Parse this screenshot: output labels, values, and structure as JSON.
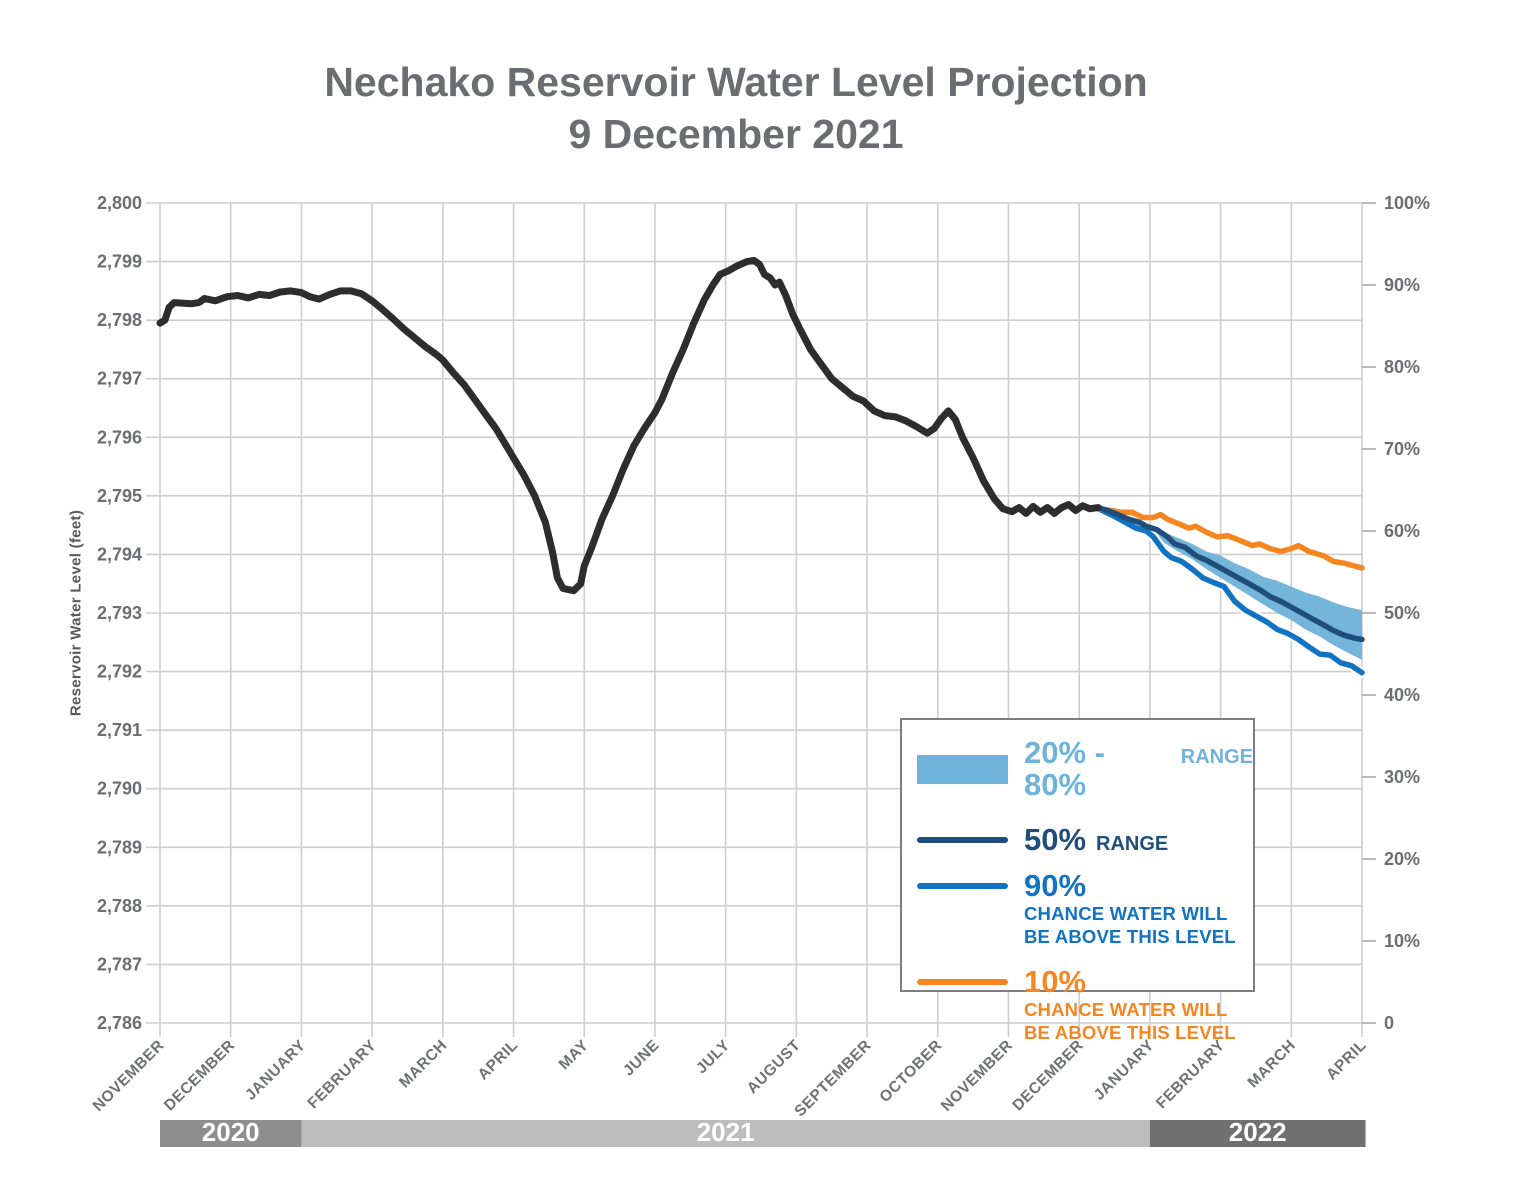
{
  "title": {
    "line1": "Nechako Reservoir Water Level Projection",
    "line2": "9 December 2021"
  },
  "axes": {
    "y_left": {
      "label": "Reservoir Water Level (feet)",
      "min": 2786,
      "max": 2800,
      "ticks": [
        "2,786",
        "2,787",
        "2,788",
        "2,789",
        "2,790",
        "2,791",
        "2,792",
        "2,793",
        "2,794",
        "2,795",
        "2,796",
        "2,797",
        "2,798",
        "2,799",
        "2,800"
      ]
    },
    "y_right": {
      "min": 0,
      "max": 100,
      "ticks": [
        "0",
        "10%",
        "20%",
        "30%",
        "40%",
        "50%",
        "60%",
        "70%",
        "80%",
        "90%",
        "100%"
      ]
    },
    "x": {
      "months": [
        "NOVEMBER",
        "DECEMBER",
        "JANUARY",
        "FEBRUARY",
        "MARCH",
        "APRIL",
        "MAY",
        "JUNE",
        "JULY",
        "AUGUST",
        "SEPTEMBER",
        "OCTOBER",
        "NOVEMBER",
        "DECEMBER",
        "JANUARY",
        "FEBRUARY",
        "MARCH",
        "APRIL"
      ],
      "years": [
        {
          "label": "2020",
          "from": 0,
          "to": 2,
          "color": "#8e8e8e"
        },
        {
          "label": "2021",
          "from": 2,
          "to": 14,
          "color": "#bdbdbd"
        },
        {
          "label": "2022",
          "from": 14,
          "to": 17.05,
          "color": "#707070"
        }
      ]
    }
  },
  "legend": {
    "item1_big": "20% - 80%",
    "item1_small": "RANGE",
    "item2_big": "50%",
    "item2_small": "RANGE",
    "item3_big": "90%",
    "item3_line1": "CHANCE WATER WILL",
    "item3_line2": "BE ABOVE THIS LEVEL",
    "item4_big": "10%",
    "item4_line1": "CHANCE WATER WILL",
    "item4_line2": "BE ABOVE THIS LEVEL"
  },
  "colors": {
    "historical": "#2d2d2d",
    "band": "#74b5d9",
    "band_text": "#6fb3da",
    "navy": "#1f4e7c",
    "blue": "#1173c1",
    "orange": "#f6861f",
    "grid": "#cdced0",
    "tick_text": "#6d6e71",
    "month_text": "#6f7174",
    "title_text": "#6c6d70"
  },
  "chart_data": {
    "type": "line",
    "title": "Nechako Reservoir Water Level Projection 9 December 2021",
    "xlabel_unit": "months since 2020-11-01",
    "ylabel": "Reservoir Water Level (feet)",
    "ylim": [
      2786,
      2800
    ],
    "y2lim_percent": [
      0,
      100
    ],
    "grid": true,
    "legend_position": "inside lower right",
    "series": [
      {
        "name": "historical_water_level",
        "points": [
          [
            0,
            2797.95
          ],
          [
            0.07,
            2798.0
          ],
          [
            0.13,
            2798.22
          ],
          [
            0.2,
            2798.3
          ],
          [
            0.45,
            2798.28
          ],
          [
            0.55,
            2798.3
          ],
          [
            0.63,
            2798.37
          ],
          [
            0.78,
            2798.33
          ],
          [
            0.95,
            2798.4
          ],
          [
            1.1,
            2798.42
          ],
          [
            1.25,
            2798.38
          ],
          [
            1.4,
            2798.44
          ],
          [
            1.55,
            2798.42
          ],
          [
            1.7,
            2798.48
          ],
          [
            1.85,
            2798.5
          ],
          [
            2.0,
            2798.47
          ],
          [
            2.12,
            2798.4
          ],
          [
            2.25,
            2798.36
          ],
          [
            2.4,
            2798.44
          ],
          [
            2.55,
            2798.5
          ],
          [
            2.7,
            2798.5
          ],
          [
            2.85,
            2798.45
          ],
          [
            3.0,
            2798.33
          ],
          [
            3.15,
            2798.18
          ],
          [
            3.3,
            2798.02
          ],
          [
            3.45,
            2797.85
          ],
          [
            3.6,
            2797.7
          ],
          [
            3.75,
            2797.55
          ],
          [
            3.9,
            2797.42
          ],
          [
            4.0,
            2797.32
          ],
          [
            4.15,
            2797.1
          ],
          [
            4.3,
            2796.9
          ],
          [
            4.45,
            2796.65
          ],
          [
            4.6,
            2796.4
          ],
          [
            4.75,
            2796.15
          ],
          [
            4.9,
            2795.85
          ],
          [
            5.0,
            2795.65
          ],
          [
            5.15,
            2795.35
          ],
          [
            5.3,
            2795.0
          ],
          [
            5.45,
            2794.55
          ],
          [
            5.55,
            2794.05
          ],
          [
            5.62,
            2793.6
          ],
          [
            5.7,
            2793.42
          ],
          [
            5.85,
            2793.38
          ],
          [
            5.95,
            2793.5
          ],
          [
            6.0,
            2793.8
          ],
          [
            6.1,
            2794.1
          ],
          [
            6.25,
            2794.6
          ],
          [
            6.4,
            2795.0
          ],
          [
            6.55,
            2795.45
          ],
          [
            6.7,
            2795.85
          ],
          [
            6.85,
            2796.15
          ],
          [
            7.0,
            2796.42
          ],
          [
            7.1,
            2796.65
          ],
          [
            7.25,
            2797.1
          ],
          [
            7.4,
            2797.5
          ],
          [
            7.55,
            2797.95
          ],
          [
            7.7,
            2798.35
          ],
          [
            7.82,
            2798.6
          ],
          [
            7.92,
            2798.78
          ],
          [
            8.05,
            2798.85
          ],
          [
            8.15,
            2798.92
          ],
          [
            8.3,
            2799.0
          ],
          [
            8.4,
            2799.02
          ],
          [
            8.48,
            2798.95
          ],
          [
            8.55,
            2798.78
          ],
          [
            8.63,
            2798.72
          ],
          [
            8.7,
            2798.6
          ],
          [
            8.76,
            2798.65
          ],
          [
            8.85,
            2798.42
          ],
          [
            8.95,
            2798.1
          ],
          [
            9.05,
            2797.85
          ],
          [
            9.2,
            2797.5
          ],
          [
            9.35,
            2797.25
          ],
          [
            9.5,
            2797.0
          ],
          [
            9.65,
            2796.85
          ],
          [
            9.8,
            2796.7
          ],
          [
            9.95,
            2796.62
          ],
          [
            10.1,
            2796.45
          ],
          [
            10.25,
            2796.37
          ],
          [
            10.4,
            2796.35
          ],
          [
            10.55,
            2796.28
          ],
          [
            10.7,
            2796.18
          ],
          [
            10.85,
            2796.07
          ],
          [
            10.95,
            2796.15
          ],
          [
            11.05,
            2796.32
          ],
          [
            11.15,
            2796.45
          ],
          [
            11.25,
            2796.3
          ],
          [
            11.35,
            2796.0
          ],
          [
            11.5,
            2795.65
          ],
          [
            11.65,
            2795.25
          ],
          [
            11.8,
            2794.95
          ],
          [
            11.92,
            2794.78
          ],
          [
            12.05,
            2794.73
          ],
          [
            12.15,
            2794.8
          ],
          [
            12.25,
            2794.7
          ],
          [
            12.35,
            2794.82
          ],
          [
            12.45,
            2794.72
          ],
          [
            12.55,
            2794.8
          ],
          [
            12.65,
            2794.7
          ],
          [
            12.75,
            2794.8
          ],
          [
            12.85,
            2794.85
          ],
          [
            12.95,
            2794.75
          ],
          [
            13.05,
            2794.83
          ],
          [
            13.15,
            2794.78
          ],
          [
            13.27,
            2794.8
          ]
        ]
      },
      {
        "name": "projection_50pct_range",
        "points": [
          [
            13.27,
            2794.8
          ],
          [
            13.4,
            2794.75
          ],
          [
            13.55,
            2794.68
          ],
          [
            13.7,
            2794.6
          ],
          [
            13.85,
            2794.55
          ],
          [
            13.95,
            2794.48
          ],
          [
            14.1,
            2794.42
          ],
          [
            14.25,
            2794.3
          ],
          [
            14.35,
            2794.18
          ],
          [
            14.5,
            2794.12
          ],
          [
            14.65,
            2793.98
          ],
          [
            14.8,
            2793.9
          ],
          [
            14.95,
            2793.8
          ],
          [
            15.1,
            2793.7
          ],
          [
            15.25,
            2793.6
          ],
          [
            15.4,
            2793.5
          ],
          [
            15.55,
            2793.4
          ],
          [
            15.7,
            2793.28
          ],
          [
            15.85,
            2793.2
          ],
          [
            16.0,
            2793.1
          ],
          [
            16.15,
            2793.0
          ],
          [
            16.3,
            2792.9
          ],
          [
            16.45,
            2792.8
          ],
          [
            16.6,
            2792.7
          ],
          [
            16.75,
            2792.62
          ],
          [
            16.9,
            2792.57
          ],
          [
            17.0,
            2792.55
          ]
        ]
      },
      {
        "name": "projection_90pct_chance_above",
        "points": [
          [
            13.27,
            2794.78
          ],
          [
            13.5,
            2794.65
          ],
          [
            13.65,
            2794.55
          ],
          [
            13.8,
            2794.45
          ],
          [
            13.95,
            2794.4
          ],
          [
            14.05,
            2794.3
          ],
          [
            14.2,
            2794.05
          ],
          [
            14.3,
            2793.95
          ],
          [
            14.45,
            2793.88
          ],
          [
            14.6,
            2793.75
          ],
          [
            14.75,
            2793.6
          ],
          [
            14.9,
            2793.52
          ],
          [
            15.05,
            2793.45
          ],
          [
            15.2,
            2793.2
          ],
          [
            15.35,
            2793.05
          ],
          [
            15.5,
            2792.95
          ],
          [
            15.65,
            2792.85
          ],
          [
            15.8,
            2792.72
          ],
          [
            15.95,
            2792.65
          ],
          [
            16.1,
            2792.55
          ],
          [
            16.25,
            2792.42
          ],
          [
            16.4,
            2792.3
          ],
          [
            16.55,
            2792.28
          ],
          [
            16.7,
            2792.15
          ],
          [
            16.85,
            2792.1
          ],
          [
            17.0,
            2791.98
          ]
        ]
      },
      {
        "name": "projection_10pct_chance_above",
        "points": [
          [
            13.27,
            2794.78
          ],
          [
            13.45,
            2794.75
          ],
          [
            13.6,
            2794.72
          ],
          [
            13.75,
            2794.72
          ],
          [
            13.9,
            2794.63
          ],
          [
            14.05,
            2794.63
          ],
          [
            14.15,
            2794.68
          ],
          [
            14.25,
            2794.6
          ],
          [
            14.45,
            2794.5
          ],
          [
            14.55,
            2794.45
          ],
          [
            14.65,
            2794.48
          ],
          [
            14.8,
            2794.38
          ],
          [
            14.95,
            2794.3
          ],
          [
            15.1,
            2794.32
          ],
          [
            15.25,
            2794.25
          ],
          [
            15.45,
            2794.15
          ],
          [
            15.55,
            2794.18
          ],
          [
            15.7,
            2794.1
          ],
          [
            15.85,
            2794.05
          ],
          [
            16.0,
            2794.1
          ],
          [
            16.1,
            2794.15
          ],
          [
            16.25,
            2794.05
          ],
          [
            16.45,
            2793.98
          ],
          [
            16.6,
            2793.88
          ],
          [
            16.75,
            2793.85
          ],
          [
            16.9,
            2793.8
          ],
          [
            17.0,
            2793.77
          ]
        ]
      }
    ],
    "band_20_80": {
      "name": "projection_20_80pct_range",
      "upper": [
        [
          13.3,
          2794.76
        ],
        [
          13.6,
          2794.65
        ],
        [
          13.9,
          2794.52
        ],
        [
          14.0,
          2794.48
        ],
        [
          14.2,
          2794.38
        ],
        [
          14.4,
          2794.28
        ],
        [
          14.6,
          2794.18
        ],
        [
          14.8,
          2794.05
        ],
        [
          15.0,
          2793.98
        ],
        [
          15.2,
          2793.85
        ],
        [
          15.4,
          2793.75
        ],
        [
          15.6,
          2793.62
        ],
        [
          15.8,
          2793.55
        ],
        [
          16.0,
          2793.45
        ],
        [
          16.2,
          2793.35
        ],
        [
          16.4,
          2793.28
        ],
        [
          16.6,
          2793.18
        ],
        [
          16.8,
          2793.1
        ],
        [
          17.0,
          2793.05
        ]
      ],
      "lower": [
        [
          13.3,
          2794.74
        ],
        [
          13.6,
          2794.58
        ],
        [
          13.9,
          2794.42
        ],
        [
          14.0,
          2794.35
        ],
        [
          14.2,
          2794.2
        ],
        [
          14.4,
          2794.05
        ],
        [
          14.6,
          2793.92
        ],
        [
          14.8,
          2793.75
        ],
        [
          15.0,
          2793.6
        ],
        [
          15.2,
          2793.45
        ],
        [
          15.4,
          2793.3
        ],
        [
          15.6,
          2793.15
        ],
        [
          15.8,
          2793.0
        ],
        [
          16.0,
          2792.88
        ],
        [
          16.2,
          2792.72
        ],
        [
          16.4,
          2792.6
        ],
        [
          16.6,
          2792.45
        ],
        [
          16.8,
          2792.32
        ],
        [
          17.0,
          2792.2
        ]
      ]
    }
  }
}
